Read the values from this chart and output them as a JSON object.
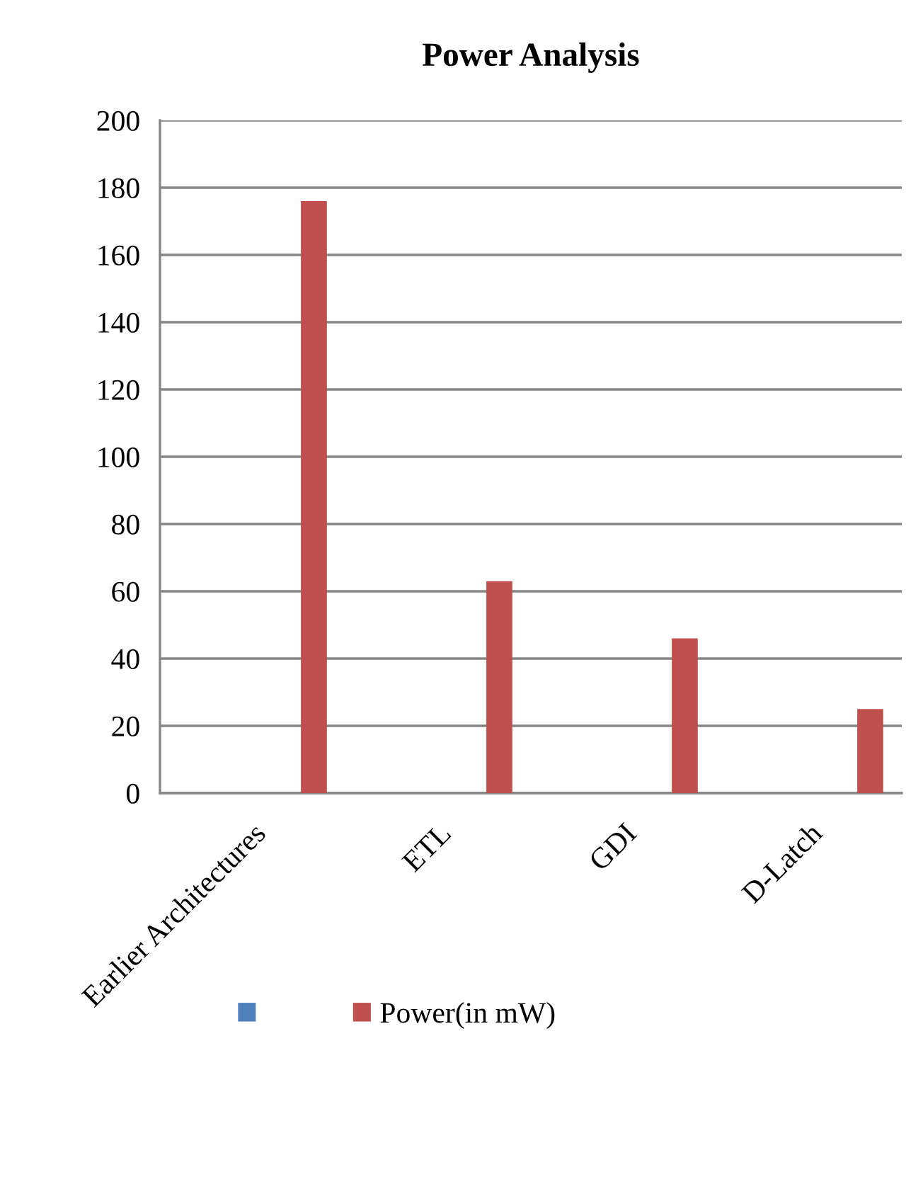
{
  "chart_data": {
    "type": "bar",
    "title": "Power Analysis",
    "categories": [
      "Earlier Architectures",
      "ETL",
      "GDI",
      "D-Latch"
    ],
    "series": [
      {
        "color": "#4f81bd",
        "values": [
          null,
          null,
          null,
          null
        ]
      },
      {
        "name": "Power(in mW)",
        "color": "#c0504d",
        "values": [
          176,
          63,
          46,
          25
        ]
      }
    ],
    "ylim": [
      0,
      200
    ],
    "yticks": [
      0,
      20,
      40,
      60,
      80,
      100,
      120,
      140,
      160,
      180,
      200
    ],
    "grid": "y",
    "legend": "bottom"
  }
}
